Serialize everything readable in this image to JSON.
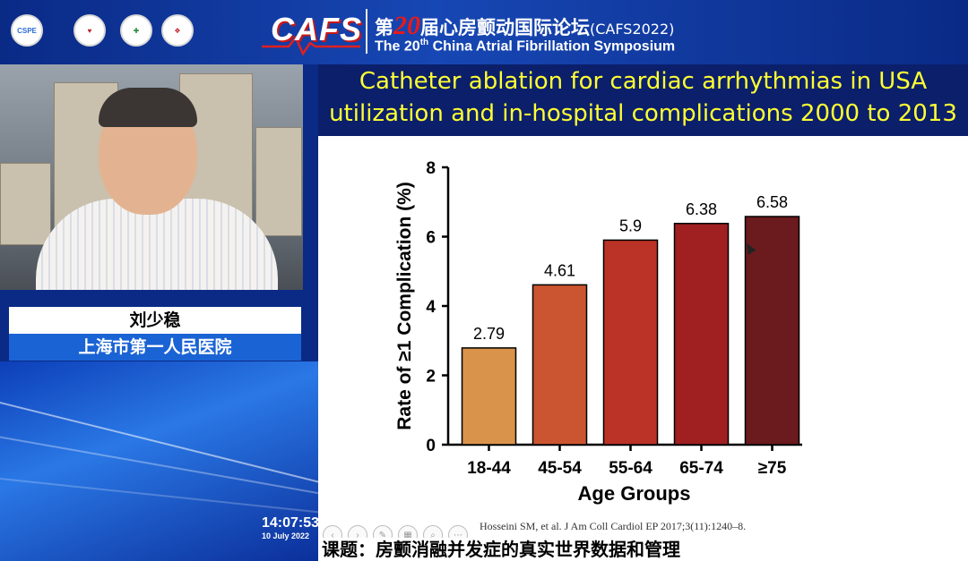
{
  "header": {
    "title_prefix": "第",
    "title_num": "20",
    "title_suffix": "届心房颤动国际论坛",
    "title_code": "(CAFS2022)",
    "subtitle_pre": "The 20",
    "subtitle_sup": "th",
    "subtitle_post": " China Atrial Fibrillation Symposium",
    "brand": "CAFS",
    "logos": [
      "heart-logo",
      "chinese-heart-logo",
      "csa-logo",
      "cross-logo"
    ],
    "logo1_text": "CSPE"
  },
  "speaker": {
    "name": "刘少稳",
    "affiliation": "上海市第一人民医院"
  },
  "clock": {
    "time": "14:07:53",
    "date": "10 July 2022"
  },
  "slide": {
    "title_line1": "Catheter ablation for cardiac arrhythmias in USA",
    "title_line2": "utilization and in-hospital complications 2000 to 2013",
    "citation": "Hosseini SM, et al. J Am Coll Cardiol EP 2017;3(11):1240–8."
  },
  "topic": "课题：房颤消融并发症的真实世界数据和管理",
  "colors": {
    "header_bg": "#0a2a86",
    "slide_title_bg": "#0b1f6b",
    "slide_title_text": "#ffff33",
    "affiliation_bg": "#1a63d4"
  },
  "chart_data": {
    "type": "bar",
    "categories": [
      "18-44",
      "45-54",
      "55-64",
      "65-74",
      "≥75"
    ],
    "values": [
      2.79,
      4.61,
      5.9,
      6.38,
      6.58
    ],
    "value_labels": [
      "2.79",
      "4.61",
      "5.9",
      "6.38",
      "6.58"
    ],
    "colors": [
      "#d9934a",
      "#cb5530",
      "#bb3226",
      "#a01f20",
      "#6b1a1e"
    ],
    "xlabel": "Age Groups",
    "ylabel": "Rate of ≥1 Complication (%)",
    "ylim": [
      0,
      8
    ],
    "yticks": [
      "0",
      "2",
      "4",
      "6",
      "8"
    ],
    "grid": false
  }
}
